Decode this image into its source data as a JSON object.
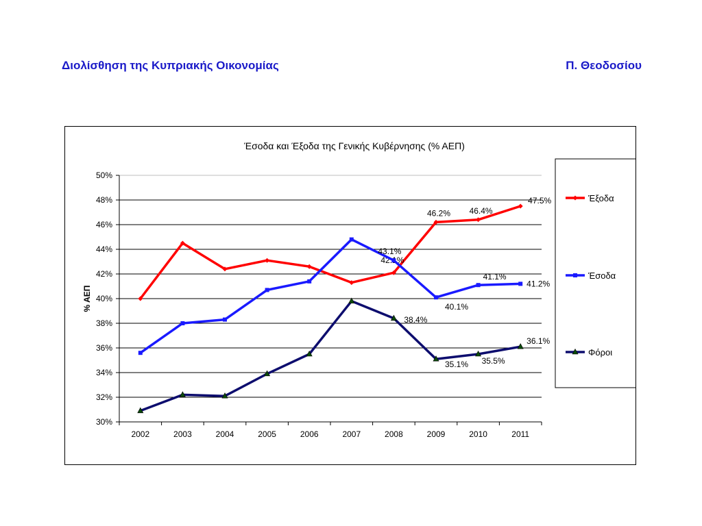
{
  "header": {
    "title": "Διολίσθηση της Κυπριακής Οικονομίας",
    "author": "Π. Θεοδοσίου"
  },
  "chart_data": {
    "type": "line",
    "title": "Έσοδα και Έξοδα της Γενικής Κυβέρνησης (% ΑΕΠ)",
    "xlabel": "",
    "ylabel": "% ΑΕΠ",
    "ylim": [
      30,
      50
    ],
    "yticks": [
      "30%",
      "32%",
      "34%",
      "36%",
      "38%",
      "40%",
      "42%",
      "44%",
      "46%",
      "48%",
      "50%"
    ],
    "grid": true,
    "legend_position": "right",
    "categories": [
      "2002",
      "2003",
      "2004",
      "2005",
      "2006",
      "2007",
      "2008",
      "2009",
      "2010",
      "2011"
    ],
    "series": [
      {
        "name": "Έξοδα",
        "color": "#ff0000",
        "marker": "diamond",
        "values": [
          40.0,
          44.5,
          42.4,
          43.1,
          42.6,
          41.3,
          42.1,
          46.2,
          46.4,
          47.5
        ],
        "data_labels": [
          null,
          null,
          null,
          null,
          null,
          null,
          "42.1%",
          "46.2%",
          "46.4%",
          "47.5%"
        ]
      },
      {
        "name": "Έσοδα",
        "color": "#1a1aff",
        "marker": "square",
        "values": [
          35.6,
          38.0,
          38.3,
          40.7,
          41.4,
          44.8,
          43.1,
          40.1,
          41.1,
          41.2
        ],
        "data_labels": [
          null,
          null,
          null,
          null,
          null,
          null,
          "43.1%",
          "40.1%",
          "41.1%",
          "41.2%"
        ]
      },
      {
        "name": "Φόροι",
        "color": "#0d0d6e",
        "marker": "triangle",
        "values": [
          30.9,
          32.2,
          32.1,
          33.9,
          35.5,
          39.8,
          38.4,
          35.1,
          35.5,
          36.1
        ],
        "data_labels": [
          null,
          null,
          null,
          null,
          null,
          null,
          "38.4%",
          "35.1%",
          "35.5%",
          "36.1%"
        ]
      }
    ]
  }
}
